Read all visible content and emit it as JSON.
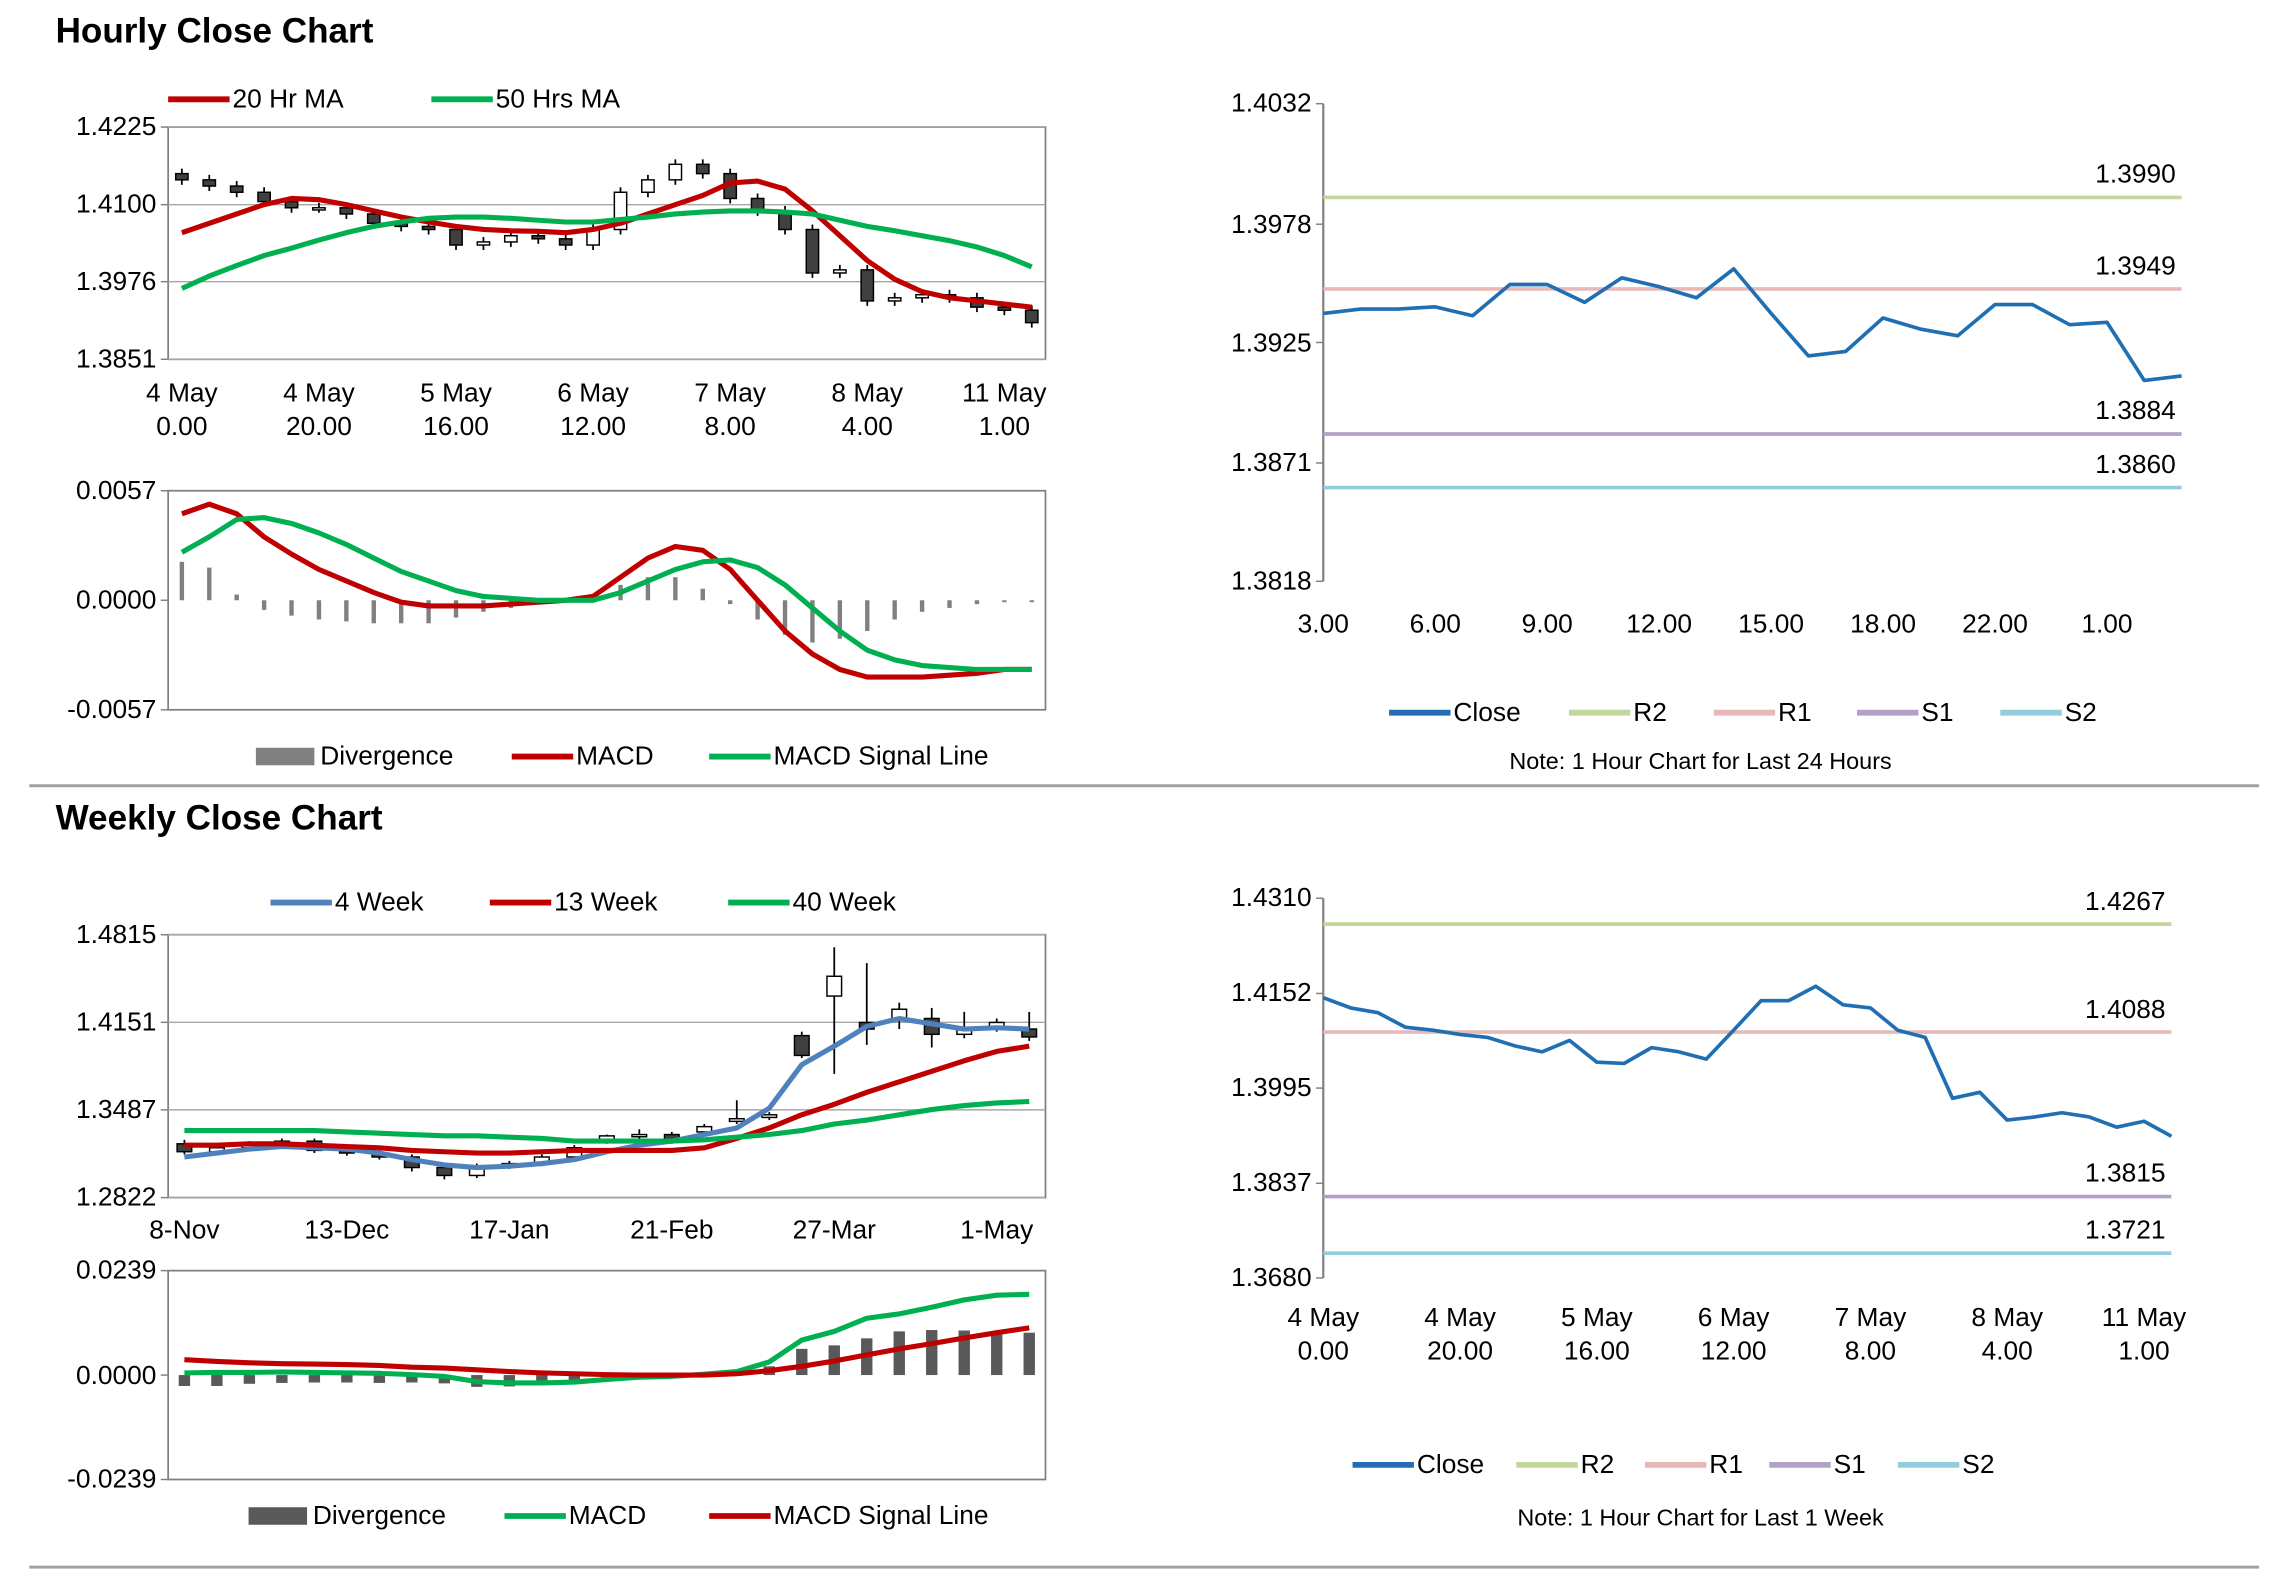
{
  "headings": [
    "Hourly Close Chart",
    "Weekly Close Chart"
  ],
  "chart_data": [
    {
      "type": "candlestick",
      "categories": [
        "4 May\n0.00",
        null,
        null,
        null,
        null,
        "4 May\n20.00",
        null,
        null,
        null,
        null,
        "5 May\n16.00",
        null,
        null,
        null,
        null,
        "6 May\n12.00",
        null,
        null,
        null,
        null,
        "7 May\n8.00",
        null,
        null,
        null,
        null,
        "8 May\n4.00",
        null,
        null,
        null,
        null,
        "11 May\n1.00",
        null
      ],
      "open": [
        1.415,
        1.414,
        1.413,
        1.412,
        1.4105,
        1.4095,
        1.4095,
        1.4085,
        1.407,
        1.4065,
        1.406,
        1.4035,
        1.404,
        1.405,
        1.4045,
        1.4035,
        1.406,
        1.412,
        1.414,
        1.4165,
        1.415,
        1.411,
        1.409,
        1.406,
        1.399,
        1.3995,
        1.3945,
        1.395,
        1.3955,
        1.395,
        1.3935,
        1.393
      ],
      "high": [
        1.4158,
        1.4148,
        1.4138,
        1.4128,
        1.4113,
        1.4103,
        1.4103,
        1.4093,
        1.4078,
        1.4073,
        1.4068,
        1.4048,
        1.4058,
        1.4058,
        1.4053,
        1.4068,
        1.4128,
        1.4148,
        1.4173,
        1.4173,
        1.4158,
        1.4118,
        1.4098,
        1.4068,
        1.4003,
        1.4003,
        1.3958,
        1.3963,
        1.3963,
        1.3958,
        1.3943,
        1.3938
      ],
      "low": [
        1.4132,
        1.4122,
        1.4112,
        1.4097,
        1.4087,
        1.4087,
        1.4077,
        1.4062,
        1.4057,
        1.4052,
        1.4027,
        1.4027,
        1.4032,
        1.4037,
        1.4027,
        1.4027,
        1.4052,
        1.4112,
        1.4132,
        1.4142,
        1.4102,
        1.4082,
        1.4052,
        1.3982,
        1.3982,
        1.3937,
        1.3937,
        1.3942,
        1.3942,
        1.3927,
        1.3922,
        1.3902
      ],
      "close": [
        1.414,
        1.413,
        1.412,
        1.4105,
        1.4095,
        1.4095,
        1.4085,
        1.407,
        1.4065,
        1.406,
        1.4035,
        1.404,
        1.405,
        1.4045,
        1.4035,
        1.406,
        1.412,
        1.414,
        1.4165,
        1.415,
        1.411,
        1.409,
        1.406,
        1.399,
        1.3995,
        1.3945,
        1.395,
        1.3955,
        1.395,
        1.3935,
        1.393,
        1.391
      ],
      "up_color": "#ffffff",
      "down_color": "#404040",
      "series": [
        {
          "name": "20 Hr MA",
          "color": "#c00000",
          "values": [
            1.4055,
            1.407,
            1.4085,
            1.41,
            1.411,
            1.4108,
            1.41,
            1.409,
            1.408,
            1.4072,
            1.4065,
            1.406,
            1.4058,
            1.4057,
            1.4055,
            1.406,
            1.407,
            1.4085,
            1.41,
            1.4115,
            1.4135,
            1.4138,
            1.4125,
            1.409,
            1.405,
            1.401,
            1.398,
            1.396,
            1.395,
            1.3945,
            1.394,
            1.3935
          ]
        },
        {
          "name": "50 Hrs MA",
          "color": "#00b050",
          "values": [
            1.3965,
            1.3985,
            1.4002,
            1.4018,
            1.403,
            1.4043,
            1.4055,
            1.4065,
            1.4072,
            1.4078,
            1.408,
            1.408,
            1.4078,
            1.4075,
            1.4072,
            1.4072,
            1.4076,
            1.408,
            1.4085,
            1.4088,
            1.409,
            1.409,
            1.4088,
            1.4085,
            1.4075,
            1.4065,
            1.4058,
            1.405,
            1.4042,
            1.4032,
            1.4018,
            1.4
          ]
        }
      ],
      "ylim": [
        1.3851,
        1.4225
      ],
      "yticks": [
        1.3851,
        1.3976,
        {
          "value": 1.41,
          "label": "1.4100"
        },
        1.4225
      ],
      "grid": true
    },
    {
      "type": "macd",
      "series": [
        {
          "name": "Divergence",
          "color": "#808080",
          "style": "bar",
          "values": [
            0.002,
            0.0017,
            0.0003,
            -0.0005,
            -0.0008,
            -0.001,
            -0.0011,
            -0.0012,
            -0.0012,
            -0.0012,
            -0.0009,
            -0.0006,
            -0.0004,
            -0.0002,
            0.0,
            0.0002,
            0.0008,
            0.0012,
            0.0012,
            0.0006,
            -0.0002,
            -0.001,
            -0.0018,
            -0.0022,
            -0.002,
            -0.0016,
            -0.001,
            -0.0006,
            -0.0004,
            -0.0002,
            -0.0001,
            -0.0001
          ]
        },
        {
          "name": "MACD",
          "color": "#c00000",
          "values": [
            0.0045,
            0.005,
            0.0045,
            0.0033,
            0.0024,
            0.0016,
            0.001,
            0.0004,
            -0.0001,
            -0.0003,
            -0.0003,
            -0.0003,
            -0.0002,
            -0.0001,
            0.0,
            0.0002,
            0.0012,
            0.0022,
            0.0028,
            0.0026,
            0.0016,
            0.0,
            -0.0016,
            -0.0028,
            -0.0036,
            -0.004,
            -0.004,
            -0.004,
            -0.0039,
            -0.0038,
            -0.0036,
            -0.0036
          ]
        },
        {
          "name": "MACD Signal Line",
          "color": "#00b050",
          "values": [
            0.0025,
            0.0033,
            0.0042,
            0.0043,
            0.004,
            0.0035,
            0.0029,
            0.0022,
            0.0015,
            0.001,
            0.0005,
            0.0002,
            0.0001,
            0.0,
            0.0,
            0.0,
            0.0004,
            0.001,
            0.0016,
            0.002,
            0.0021,
            0.0017,
            0.0008,
            -0.0004,
            -0.0016,
            -0.0026,
            -0.0031,
            -0.0034,
            -0.0035,
            -0.0036,
            -0.0036,
            -0.0036
          ]
        }
      ],
      "ylim": [
        -0.0057,
        0.0057
      ],
      "yticks": [
        -0.0057,
        {
          "value": 0,
          "label": "0.0000"
        },
        0.0057
      ],
      "grid": false
    },
    {
      "type": "pivot",
      "categories": [
        "3.00",
        null,
        null,
        "6.00",
        null,
        null,
        "9.00",
        null,
        null,
        "12.00",
        null,
        null,
        "15.00",
        null,
        null,
        "18.00",
        null,
        null,
        "22.00",
        null,
        null,
        "1.00",
        null,
        null
      ],
      "series": [
        {
          "name": "Close",
          "color": "#1f6fb2",
          "values": [
            1.3938,
            1.394,
            1.394,
            1.3941,
            1.3937,
            1.3951,
            1.3951,
            1.3943,
            1.3954,
            1.395,
            1.3945,
            1.3958,
            1.3938,
            1.3919,
            1.3921,
            1.3936,
            1.3931,
            1.3928,
            1.3942,
            1.3942,
            1.3933,
            1.3934,
            1.3908,
            1.391
          ]
        }
      ],
      "levels": [
        {
          "name": "R2",
          "color": "#c3d69b",
          "value": 1.399,
          "value_label": "1.3990"
        },
        {
          "name": "R1",
          "color": "#e6b9b8",
          "value": 1.3949,
          "value_label": "1.3949"
        },
        {
          "name": "S1",
          "color": "#b3a2c7",
          "value": 1.3884,
          "value_label": "1.3884"
        },
        {
          "name": "S2",
          "color": "#93cddd",
          "value": 1.386,
          "value_label": "1.3860"
        }
      ],
      "ylim": [
        1.3818,
        1.4032
      ],
      "yticks": [
        1.3818,
        1.3871,
        1.3925,
        1.3978,
        1.4032
      ],
      "grid": false,
      "note": "Note: 1 Hour Chart for Last 24 Hours"
    },
    {
      "type": "candlestick",
      "categories": [
        "8-Nov",
        null,
        null,
        null,
        null,
        "13-Dec",
        null,
        null,
        null,
        null,
        "17-Jan",
        null,
        null,
        null,
        null,
        "21-Feb",
        null,
        null,
        null,
        null,
        "27-Mar",
        null,
        null,
        null,
        null,
        "1-May",
        null
      ],
      "open": [
        1.323,
        1.317,
        1.32,
        1.323,
        1.325,
        1.318,
        1.316,
        1.313,
        1.305,
        1.299,
        1.306,
        1.308,
        1.313,
        1.325,
        1.329,
        1.33,
        1.332,
        1.34,
        1.343,
        1.405,
        1.435,
        1.415,
        1.418,
        1.418,
        1.406,
        1.41,
        1.41
      ],
      "high": [
        1.326,
        1.32,
        1.325,
        1.327,
        1.327,
        1.32,
        1.318,
        1.315,
        1.307,
        1.308,
        1.31,
        1.315,
        1.322,
        1.33,
        1.334,
        1.332,
        1.338,
        1.356,
        1.347,
        1.408,
        1.472,
        1.46,
        1.43,
        1.426,
        1.423,
        1.418,
        1.423
      ],
      "low": [
        1.315,
        1.315,
        1.318,
        1.321,
        1.316,
        1.314,
        1.311,
        1.302,
        1.296,
        1.297,
        1.304,
        1.306,
        1.311,
        1.323,
        1.327,
        1.323,
        1.33,
        1.338,
        1.341,
        1.388,
        1.376,
        1.398,
        1.41,
        1.396,
        1.403,
        1.408,
        1.401
      ],
      "close": [
        1.317,
        1.32,
        1.322,
        1.325,
        1.318,
        1.316,
        1.313,
        1.305,
        1.299,
        1.306,
        1.308,
        1.313,
        1.32,
        1.329,
        1.33,
        1.325,
        1.336,
        1.342,
        1.345,
        1.39,
        1.45,
        1.41,
        1.425,
        1.406,
        1.41,
        1.415,
        1.404
      ],
      "up_color": "#ffffff",
      "down_color": "#404040",
      "series": [
        {
          "name": "4 Week",
          "color": "#4f81bd",
          "values": [
            1.313,
            1.316,
            1.319,
            1.321,
            1.32,
            1.319,
            1.316,
            1.311,
            1.307,
            1.305,
            1.306,
            1.308,
            1.311,
            1.317,
            1.322,
            1.325,
            1.33,
            1.335,
            1.35,
            1.383,
            1.397,
            1.412,
            1.418,
            1.414,
            1.41,
            1.411,
            1.41
          ]
        },
        {
          "name": "13 Week",
          "color": "#c00000",
          "values": [
            1.322,
            1.322,
            1.323,
            1.323,
            1.322,
            1.321,
            1.32,
            1.318,
            1.317,
            1.316,
            1.316,
            1.317,
            1.318,
            1.318,
            1.318,
            1.318,
            1.32,
            1.327,
            1.335,
            1.345,
            1.353,
            1.362,
            1.37,
            1.378,
            1.386,
            1.393,
            1.397
          ]
        },
        {
          "name": "40 Week",
          "color": "#00b050",
          "values": [
            1.333,
            1.333,
            1.333,
            1.333,
            1.333,
            1.332,
            1.331,
            1.33,
            1.329,
            1.329,
            1.328,
            1.327,
            1.325,
            1.325,
            1.325,
            1.325,
            1.326,
            1.328,
            1.33,
            1.333,
            1.338,
            1.341,
            1.345,
            1.349,
            1.352,
            1.354,
            1.355
          ]
        }
      ],
      "ylim": [
        1.2822,
        1.4815
      ],
      "yticks": [
        1.2822,
        1.3487,
        1.4151,
        1.4815
      ],
      "grid": true
    },
    {
      "type": "macd",
      "series": [
        {
          "name": "Divergence",
          "color": "#595959",
          "style": "bar",
          "values": [
            -0.0025,
            -0.0025,
            -0.002,
            -0.0018,
            -0.0017,
            -0.0017,
            -0.0018,
            -0.0017,
            -0.0019,
            -0.0027,
            -0.0026,
            -0.0023,
            -0.0019,
            -0.0011,
            -0.0005,
            -0.0003,
            0.0002,
            0.0005,
            0.002,
            0.006,
            0.0068,
            0.0084,
            0.01,
            0.0103,
            0.0102,
            0.01,
            0.0097
          ]
        },
        {
          "name": "MACD",
          "color": "#00b050",
          "values": [
            0.0005,
            0.0006,
            0.0006,
            0.0007,
            0.0006,
            0.0005,
            0.0004,
            0.0001,
            -0.0003,
            -0.0015,
            -0.0018,
            -0.0018,
            -0.0016,
            -0.001,
            -0.0005,
            -0.0003,
            0.0002,
            0.0008,
            0.003,
            0.008,
            0.01,
            0.013,
            0.014,
            0.0155,
            0.0172,
            0.0183,
            0.0185
          ]
        },
        {
          "name": "MACD Signal Line",
          "color": "#c00000",
          "values": [
            0.0035,
            0.0031,
            0.0028,
            0.0026,
            0.0025,
            0.0024,
            0.0022,
            0.0018,
            0.0016,
            0.0012,
            0.0008,
            0.0005,
            0.0003,
            0.0001,
            0.0,
            0.0,
            0.0,
            0.0003,
            0.001,
            0.002,
            0.0032,
            0.0046,
            0.006,
            0.0072,
            0.0085,
            0.0097,
            0.0108
          ]
        }
      ],
      "ylim": [
        -0.0239,
        0.0239
      ],
      "yticks": [
        -0.0239,
        {
          "value": 0,
          "label": "0.0000"
        },
        0.0239
      ],
      "grid": false
    },
    {
      "type": "pivot",
      "categories": [
        "4 May\n0.00",
        null,
        null,
        null,
        null,
        "4 May\n20.00",
        null,
        null,
        null,
        null,
        "5 May\n16.00",
        null,
        null,
        null,
        null,
        "6 May\n12.00",
        null,
        null,
        null,
        null,
        "7 May\n8.00",
        null,
        null,
        null,
        null,
        "8 May\n4.00",
        null,
        null,
        null,
        null,
        "11 May\n1.00",
        null
      ],
      "series": [
        {
          "name": "Close",
          "color": "#1f6fb2",
          "values": [
            1.4145,
            1.4128,
            1.412,
            1.4096,
            1.4091,
            1.4084,
            1.4079,
            1.4065,
            1.4055,
            1.4074,
            1.4038,
            1.4036,
            1.4062,
            1.4055,
            1.4043,
            1.4091,
            1.414,
            1.414,
            1.4164,
            1.4133,
            1.4128,
            1.4091,
            1.4079,
            1.3978,
            1.3988,
            1.3942,
            1.3947,
            1.3954,
            1.3947,
            1.393,
            1.394,
            1.3915
          ]
        }
      ],
      "levels": [
        {
          "name": "R2",
          "color": "#c3d69b",
          "value": 1.4267,
          "value_label": "1.4267"
        },
        {
          "name": "R1",
          "color": "#e6b9b8",
          "value": 1.4088,
          "value_label": "1.4088"
        },
        {
          "name": "S1",
          "color": "#b3a2c7",
          "value": 1.3815,
          "value_label": "1.3815"
        },
        {
          "name": "S2",
          "color": "#93cddd",
          "value": 1.3721,
          "value_label": "1.3721"
        }
      ],
      "ylim": [
        1.368,
        1.431
      ],
      "yticks": [
        {
          "value": 1.368,
          "label": "1.3680"
        },
        1.3837,
        1.3995,
        1.4152,
        {
          "value": 1.431,
          "label": "1.4310"
        }
      ],
      "grid": false,
      "note": "Note: 1 Hour Chart for  Last 1 Week"
    }
  ]
}
